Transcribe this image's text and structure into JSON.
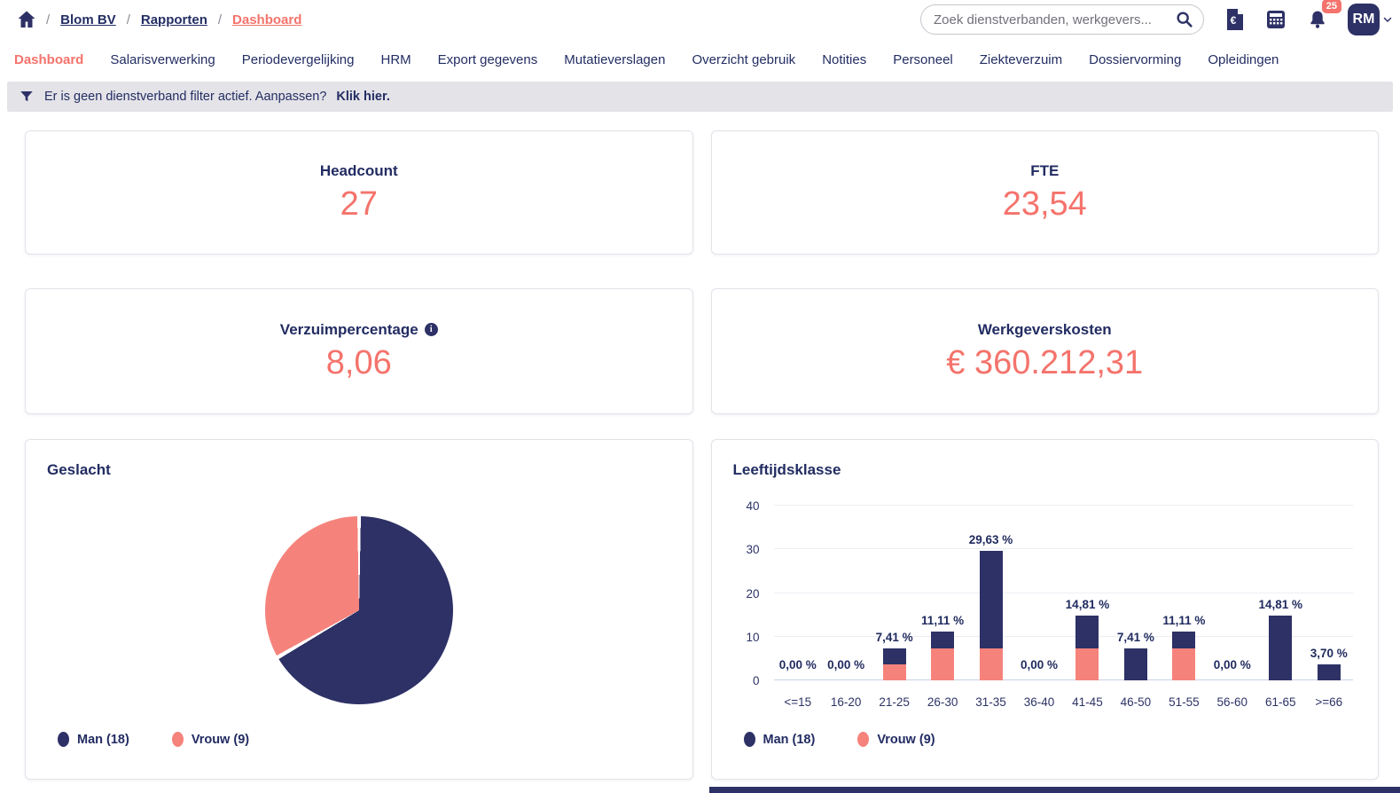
{
  "colors": {
    "navy": "#2d3166",
    "salmon_text": "#f4736c",
    "pink_chart": "#f5837c",
    "filter_bg": "#e4e3e8"
  },
  "breadcrumb": {
    "items": [
      {
        "label": "Blom BV",
        "active": false
      },
      {
        "label": "Rapporten",
        "active": false
      },
      {
        "label": "Dashboard",
        "active": true
      }
    ]
  },
  "search": {
    "placeholder": "Zoek dienstverbanden, werkgevers..."
  },
  "header": {
    "notification_count": "25",
    "avatar_initials": "RM"
  },
  "tabs": [
    {
      "label": "Dashboard",
      "active": true
    },
    {
      "label": "Salarisverwerking",
      "active": false
    },
    {
      "label": "Periodevergelijking",
      "active": false
    },
    {
      "label": "HRM",
      "active": false
    },
    {
      "label": "Export gegevens",
      "active": false
    },
    {
      "label": "Mutatieverslagen",
      "active": false
    },
    {
      "label": "Overzicht gebruik",
      "active": false
    },
    {
      "label": "Notities",
      "active": false
    },
    {
      "label": "Personeel",
      "active": false
    },
    {
      "label": "Ziekteverzuim",
      "active": false
    },
    {
      "label": "Dossiervorming",
      "active": false
    },
    {
      "label": "Opleidingen",
      "active": false
    }
  ],
  "filter_bar": {
    "text": "Er is geen dienstverband filter actief. Aanpassen?",
    "link_text": "Klik hier."
  },
  "cards": {
    "headcount": {
      "title": "Headcount",
      "value": "27"
    },
    "fte": {
      "title": "FTE",
      "value": "23,54"
    },
    "verzuim": {
      "title": "Verzuimpercentage",
      "value": "8,06"
    },
    "kosten": {
      "title": "Werkgeverskosten",
      "value": "€ 360.212,31"
    }
  },
  "chart_data": [
    {
      "type": "pie",
      "title": "Geslacht",
      "labels": [
        "Man",
        "Vrouw"
      ],
      "values": [
        18,
        9
      ],
      "colors": [
        "#2d3166",
        "#f5837c"
      ],
      "legend_items": [
        {
          "label": "Man (18)",
          "color": "#2d3166"
        },
        {
          "label": "Vrouw (9)",
          "color": "#f5837c"
        }
      ],
      "legend_position": "bottom-left",
      "start_angle": "top",
      "direction": "clockwise"
    },
    {
      "type": "bar",
      "title": "Leeftijdsklasse",
      "stacked": true,
      "categories": [
        "<=15",
        "16-20",
        "21-25",
        "26-30",
        "31-35",
        "36-40",
        "41-45",
        "46-50",
        "51-55",
        "56-60",
        "61-65",
        ">=66"
      ],
      "series": [
        {
          "name": "Man (18)",
          "color": "#2d3166",
          "values": [
            0,
            0,
            3.7,
            3.7,
            22.22,
            0,
            7.41,
            7.41,
            3.7,
            0,
            14.81,
            3.7
          ]
        },
        {
          "name": "Vrouw (9)",
          "color": "#f5837c",
          "values": [
            0,
            0,
            3.7,
            7.41,
            7.41,
            0,
            7.41,
            0,
            7.41,
            0,
            0,
            0
          ]
        }
      ],
      "totals": [
        0,
        0,
        7.41,
        11.11,
        29.63,
        0,
        14.81,
        7.41,
        11.11,
        0,
        14.81,
        3.7
      ],
      "total_labels": [
        "0,00 %",
        "0,00 %",
        "7,41 %",
        "11,11 %",
        "29,63 %",
        "0,00 %",
        "14,81 %",
        "7,41 %",
        "11,11 %",
        "0,00 %",
        "14,81 %",
        "3,70 %"
      ],
      "ylim": [
        0,
        40
      ],
      "yticks": [
        0,
        10,
        20,
        30,
        40
      ],
      "grid": true,
      "legend_items": [
        {
          "label": "Man (18)",
          "color": "#2d3166"
        },
        {
          "label": "Vrouw (9)",
          "color": "#f5837c"
        }
      ],
      "legend_position": "bottom-left"
    }
  ]
}
